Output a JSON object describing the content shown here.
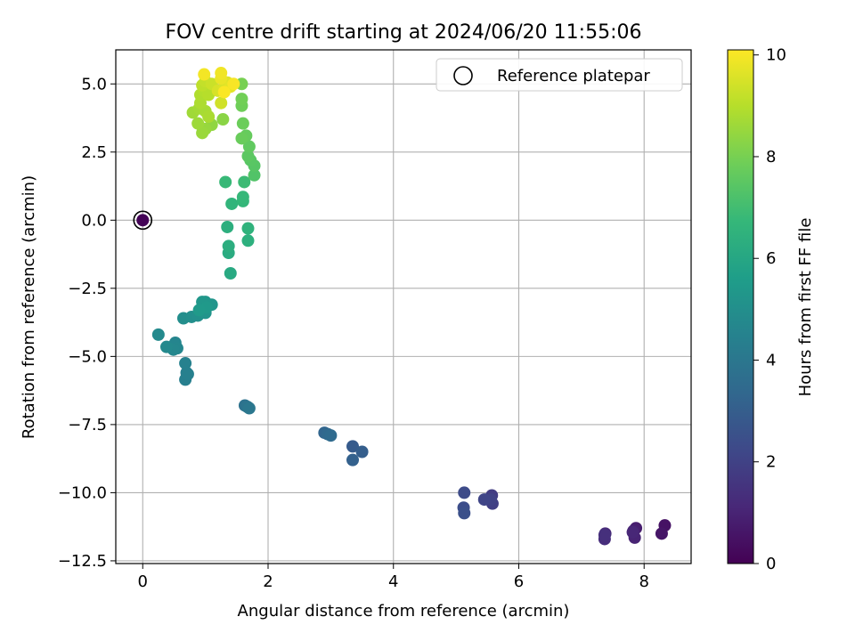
{
  "chart_data": {
    "type": "scatter",
    "title": "FOV centre drift starting at 2024/06/20 11:55:06",
    "xlabel": "Angular distance from reference (arcmin)",
    "ylabel": "Rotation from reference (arcmin)",
    "xlim": [
      -0.43,
      8.75
    ],
    "ylim": [
      -12.6,
      6.25
    ],
    "xticks": [
      0,
      2,
      4,
      6,
      8
    ],
    "xtick_labels": [
      "0",
      "2",
      "4",
      "6",
      "8"
    ],
    "yticks": [
      5.0,
      2.5,
      0.0,
      -2.5,
      -5.0,
      -7.5,
      -10.0,
      -12.5
    ],
    "ytick_labels": [
      "5.0",
      "2.5",
      "0.0",
      "−2.5",
      "−5.0",
      "−7.5",
      "−10.0",
      "−12.5"
    ],
    "grid": true,
    "legend": {
      "position": "top-right",
      "entries": [
        {
          "label": "Reference platepar",
          "marker": "open-circle"
        }
      ]
    },
    "colorbar": {
      "label": "Hours from first FF file",
      "range": [
        0,
        10.1
      ],
      "ticks": [
        0,
        2,
        4,
        6,
        8,
        10
      ],
      "tick_labels": [
        "0",
        "2",
        "4",
        "6",
        "8",
        "10"
      ],
      "colormap": "viridis"
    },
    "reference_point": {
      "x": 0,
      "y": 0
    },
    "points": [
      [
        0,
        0,
        0.1
      ],
      [
        8.33,
        -11.2,
        0.5
      ],
      [
        8.28,
        -11.5,
        0.6
      ],
      [
        7.87,
        -11.3,
        0.8
      ],
      [
        7.83,
        -11.4,
        0.9
      ],
      [
        7.85,
        -11.65,
        1.0
      ],
      [
        7.82,
        -11.45,
        1.1
      ],
      [
        7.38,
        -11.5,
        1.2
      ],
      [
        7.37,
        -11.7,
        1.3
      ],
      [
        7.37,
        -11.55,
        1.4
      ],
      [
        5.57,
        -10.1,
        1.8
      ],
      [
        5.58,
        -10.4,
        1.9
      ],
      [
        5.55,
        -10.25,
        2.0
      ],
      [
        5.45,
        -10.25,
        2.1
      ],
      [
        5.13,
        -10.0,
        2.3
      ],
      [
        5.12,
        -10.55,
        2.4
      ],
      [
        5.13,
        -10.75,
        2.5
      ],
      [
        3.35,
        -8.3,
        2.9
      ],
      [
        3.5,
        -8.5,
        3.0
      ],
      [
        3.35,
        -8.8,
        3.1
      ],
      [
        2.9,
        -7.8,
        3.3
      ],
      [
        2.95,
        -7.85,
        3.4
      ],
      [
        3.0,
        -7.9,
        3.5
      ],
      [
        1.63,
        -6.8,
        3.8
      ],
      [
        1.67,
        -6.85,
        3.9
      ],
      [
        1.7,
        -6.9,
        4.0
      ],
      [
        0.7,
        -5.6,
        4.3
      ],
      [
        0.68,
        -5.85,
        4.35
      ],
      [
        0.72,
        -5.65,
        4.4
      ],
      [
        0.68,
        -5.25,
        4.45
      ],
      [
        0.52,
        -4.5,
        4.6
      ],
      [
        0.55,
        -4.7,
        4.65
      ],
      [
        0.49,
        -4.75,
        4.7
      ],
      [
        0.38,
        -4.65,
        4.75
      ],
      [
        0.25,
        -4.2,
        4.8
      ],
      [
        0.65,
        -3.6,
        4.95
      ],
      [
        0.78,
        -3.55,
        5.0
      ],
      [
        0.88,
        -3.5,
        5.05
      ],
      [
        0.92,
        -3.4,
        5.1
      ],
      [
        0.95,
        -3.2,
        5.15
      ],
      [
        1.0,
        -3.4,
        5.2
      ],
      [
        1.1,
        -3.1,
        5.25
      ],
      [
        1.0,
        -3.0,
        5.3
      ],
      [
        0.95,
        -3.0,
        5.35
      ],
      [
        1.02,
        -3.2,
        5.4
      ],
      [
        0.9,
        -3.3,
        5.45
      ],
      [
        1.4,
        -1.95,
        6.1
      ],
      [
        1.37,
        -1.2,
        6.2
      ],
      [
        1.37,
        -0.95,
        6.3
      ],
      [
        1.35,
        -0.25,
        6.35
      ],
      [
        1.68,
        -0.75,
        6.4
      ],
      [
        1.68,
        -0.3,
        6.5
      ],
      [
        1.42,
        0.6,
        6.6
      ],
      [
        1.6,
        0.7,
        6.7
      ],
      [
        1.6,
        0.85,
        6.75
      ],
      [
        1.32,
        1.4,
        6.8
      ],
      [
        1.62,
        1.4,
        6.9
      ],
      [
        1.78,
        1.65,
        7.3
      ],
      [
        1.78,
        2.0,
        7.4
      ],
      [
        1.72,
        2.2,
        7.45
      ],
      [
        1.68,
        2.35,
        7.5
      ],
      [
        1.7,
        2.7,
        7.6
      ],
      [
        1.65,
        3.1,
        7.7
      ],
      [
        1.58,
        3.0,
        7.75
      ],
      [
        1.6,
        3.55,
        7.8
      ],
      [
        1.58,
        4.2,
        7.85
      ],
      [
        1.58,
        4.45,
        7.9
      ],
      [
        1.58,
        5.0,
        8.0
      ],
      [
        1.28,
        3.7,
        8.3
      ],
      [
        1.1,
        3.5,
        8.4
      ],
      [
        1.0,
        3.35,
        8.5
      ],
      [
        0.95,
        3.2,
        8.55
      ],
      [
        0.88,
        3.55,
        8.6
      ],
      [
        0.8,
        3.95,
        8.65
      ],
      [
        0.9,
        4.1,
        8.7
      ],
      [
        1.0,
        4.0,
        8.75
      ],
      [
        1.05,
        3.8,
        8.8
      ],
      [
        0.92,
        4.3,
        8.85
      ],
      [
        0.92,
        4.6,
        8.9
      ],
      [
        0.98,
        4.75,
        8.95
      ],
      [
        1.05,
        4.6,
        9.0
      ],
      [
        0.95,
        4.95,
        9.1
      ],
      [
        1.0,
        5.1,
        9.2
      ],
      [
        1.1,
        5.0,
        9.3
      ],
      [
        1.25,
        4.3,
        9.4
      ],
      [
        1.2,
        4.75,
        9.5
      ],
      [
        1.3,
        4.85,
        9.55
      ],
      [
        1.35,
        5.05,
        9.6
      ],
      [
        1.4,
        4.9,
        9.7
      ],
      [
        1.25,
        5.2,
        9.8
      ],
      [
        1.25,
        5.4,
        9.9
      ],
      [
        0.98,
        5.35,
        9.95
      ],
      [
        1.45,
        5.0,
        10.0
      ],
      [
        1.3,
        4.7,
        10.05
      ]
    ]
  }
}
